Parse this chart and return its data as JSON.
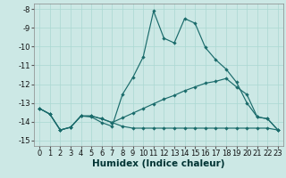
{
  "xlabel": "Humidex (Indice chaleur)",
  "background_color": "#cce8e5",
  "line_color": "#1a6b6b",
  "xlim": [
    -0.5,
    23.5
  ],
  "ylim": [
    -15.3,
    -7.7
  ],
  "yticks": [
    -8,
    -9,
    -10,
    -11,
    -12,
    -13,
    -14,
    -15
  ],
  "xticks": [
    0,
    1,
    2,
    3,
    4,
    5,
    6,
    7,
    8,
    9,
    10,
    11,
    12,
    13,
    14,
    15,
    16,
    17,
    18,
    19,
    20,
    21,
    22,
    23
  ],
  "series1_y": [
    -13.3,
    -13.6,
    -14.45,
    -14.3,
    -13.7,
    -13.75,
    -14.05,
    -14.25,
    -12.55,
    -11.65,
    -10.55,
    -8.1,
    -9.55,
    -9.8,
    -8.5,
    -8.75,
    -10.05,
    -10.7,
    -11.2,
    -11.9,
    -13.0,
    -13.75,
    -13.85,
    -14.45
  ],
  "series2_y": [
    -13.3,
    -13.6,
    -14.45,
    -14.3,
    -13.7,
    -13.7,
    -13.85,
    -14.05,
    -13.8,
    -13.55,
    -13.3,
    -13.05,
    -12.8,
    -12.6,
    -12.35,
    -12.15,
    -11.95,
    -11.85,
    -11.7,
    -12.15,
    -12.55,
    -13.75,
    -13.85,
    -14.45
  ],
  "series3_y": [
    -13.3,
    -13.6,
    -14.45,
    -14.3,
    -13.7,
    -13.7,
    -13.85,
    -14.05,
    -14.25,
    -14.35,
    -14.35,
    -14.35,
    -14.35,
    -14.35,
    -14.35,
    -14.35,
    -14.35,
    -14.35,
    -14.35,
    -14.35,
    -14.35,
    -14.35,
    -14.35,
    -14.45
  ],
  "grid_color": "#aad8d2",
  "tick_fontsize": 6,
  "xlabel_fontsize": 7.5,
  "marker": "D",
  "markersize": 2.2,
  "linewidth": 0.85
}
